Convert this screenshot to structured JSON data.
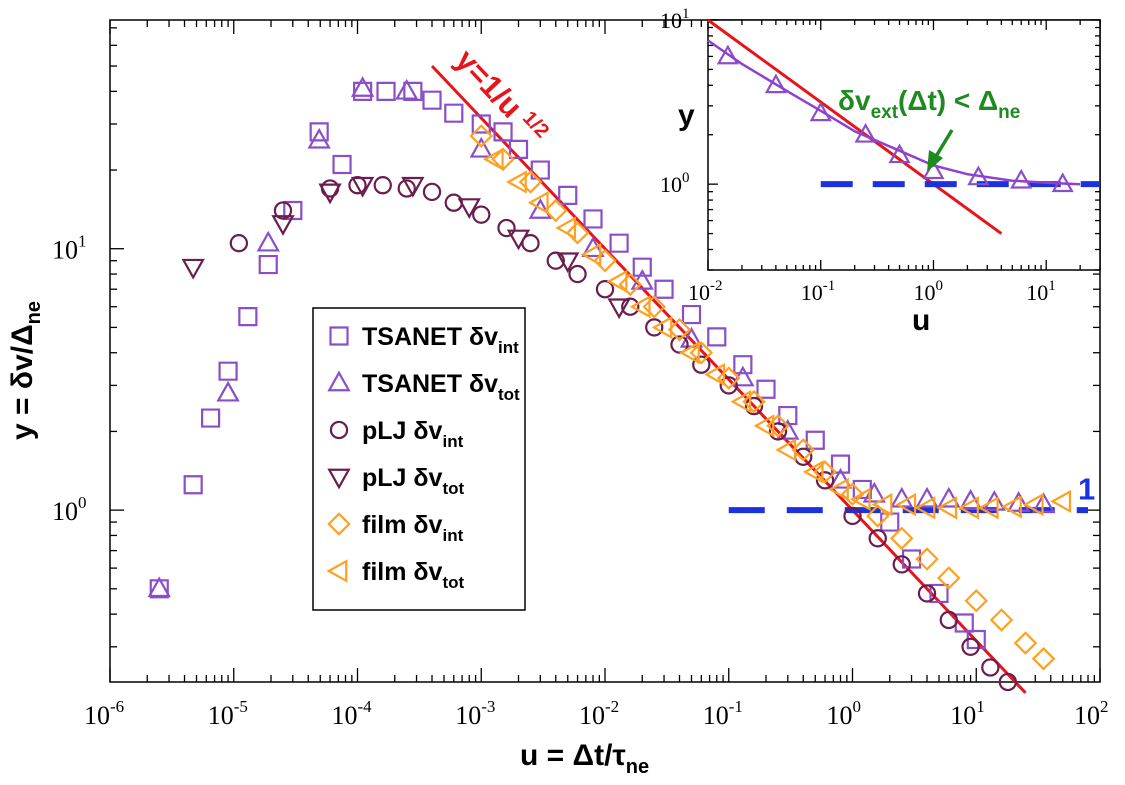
{
  "chart_data": [
    {
      "type": "scatter",
      "xlabel": "u = Δt/τ",
      "xlabel_sub": "ne",
      "ylabel": "y = δv/Δ",
      "ylabel_sub": "ne",
      "xscale": "log",
      "yscale": "log",
      "xlim": [
        1e-06,
        100
      ],
      "ylim": [
        0.22,
        75
      ],
      "x_tick_labels": [
        "10^-6",
        "10^-5",
        "10^-4",
        "10^-3",
        "10^-2",
        "10^-1",
        "10^0",
        "10^1",
        "10^2"
      ],
      "y_tick_labels": [
        "10^0",
        "10^1"
      ],
      "legend_position": "center-left",
      "series": [
        {
          "name": "TSANET δv_int",
          "label_main": "TSANET δv",
          "label_sub": "int",
          "marker": "square",
          "color": "#8a4fc8",
          "x": [
            2.5e-06,
            4.7e-06,
            6.5e-06,
            9e-06,
            1.3e-05,
            1.9e-05,
            3e-05,
            4.9e-05,
            7.5e-05,
            0.00011,
            0.00017,
            0.00028,
            0.0004,
            0.0006,
            0.001,
            0.0015,
            0.002,
            0.003,
            0.005,
            0.008,
            0.013,
            0.02,
            0.03,
            0.05,
            0.08,
            0.13,
            0.2,
            0.3,
            0.5,
            0.8,
            1.2,
            2,
            3,
            5,
            8,
            10
          ],
          "y": [
            0.5,
            1.25,
            2.25,
            3.4,
            5.5,
            8.7,
            14,
            28,
            21,
            40,
            40,
            40,
            37,
            33,
            30,
            28,
            24,
            20,
            16,
            13,
            10.5,
            8.5,
            7,
            5.6,
            4.6,
            3.6,
            2.9,
            2.3,
            1.85,
            1.5,
            1.2,
            0.9,
            0.65,
            0.48,
            0.37,
            0.32
          ]
        },
        {
          "name": "TSANET δv_tot",
          "label_main": "TSANET δv",
          "label_sub": "tot",
          "marker": "triangle-up",
          "color": "#8a4fc8",
          "x": [
            2.5e-06,
            9e-06,
            1.9e-05,
            4.9e-05,
            0.00011,
            0.00025,
            0.001,
            0.003,
            0.008,
            0.02,
            0.05,
            0.13,
            0.3,
            0.8,
            1.5,
            2.5,
            4,
            6,
            9,
            14,
            22,
            35
          ],
          "y": [
            0.5,
            2.8,
            10.5,
            26,
            41,
            40,
            24,
            14,
            10,
            7.5,
            4.5,
            3.2,
            2.0,
            1.3,
            1.15,
            1.1,
            1.1,
            1.1,
            1.08,
            1.07,
            1.06,
            1.05
          ]
        },
        {
          "name": "pLJ δv_int",
          "label_main": "pLJ δv",
          "label_sub": "int",
          "marker": "circle",
          "color": "#6b1e4d",
          "x": [
            1.1e-05,
            2.5e-05,
            6e-05,
            0.0001,
            0.00016,
            0.00025,
            0.0004,
            0.0006,
            0.001,
            0.0016,
            0.0025,
            0.004,
            0.006,
            0.01,
            0.016,
            0.025,
            0.04,
            0.06,
            0.1,
            0.16,
            0.25,
            0.4,
            0.6,
            1,
            1.6,
            2.5,
            4,
            6,
            9,
            13,
            18
          ],
          "y": [
            10.5,
            14,
            17,
            17.5,
            17.5,
            17,
            16.5,
            15,
            13.5,
            12,
            10.5,
            9,
            8,
            7,
            6,
            5,
            4.3,
            3.6,
            3.0,
            2.5,
            2.0,
            1.6,
            1.3,
            0.95,
            0.78,
            0.62,
            0.48,
            0.38,
            0.3,
            0.25,
            0.22
          ]
        },
        {
          "name": "pLJ δv_tot",
          "label_main": "pLJ δv",
          "label_sub": "tot",
          "marker": "triangle-down",
          "color": "#6b1e4d",
          "x": [
            4.7e-06,
            2.5e-05,
            6e-05,
            0.00011,
            0.00028,
            0.0008,
            0.002,
            0.005,
            0.013
          ],
          "y": [
            8.5,
            12.5,
            16.5,
            17.5,
            17.5,
            14.5,
            11,
            9,
            6
          ]
        },
        {
          "name": "film δv_int",
          "label_main": "film δv",
          "label_sub": "int",
          "marker": "diamond",
          "color": "#ffa020",
          "x": [
            0.001,
            0.0015,
            0.0025,
            0.004,
            0.006,
            0.01,
            0.016,
            0.025,
            0.04,
            0.06,
            0.1,
            0.16,
            0.25,
            0.4,
            0.6,
            1,
            1.6,
            2.5,
            4,
            6,
            10,
            16,
            25,
            35
          ],
          "y": [
            27,
            22,
            18,
            14,
            11.5,
            9,
            7.3,
            6,
            4.9,
            4,
            3.2,
            2.6,
            2.1,
            1.7,
            1.4,
            1.15,
            0.95,
            0.78,
            0.65,
            0.55,
            0.45,
            0.38,
            0.31,
            0.27
          ]
        },
        {
          "name": "film δv_tot",
          "label_main": "film δv",
          "label_sub": "tot",
          "marker": "triangle-left",
          "color": "#ffa020",
          "x": [
            0.0013,
            0.002,
            0.003,
            0.005,
            0.008,
            0.013,
            0.02,
            0.03,
            0.05,
            0.08,
            0.13,
            0.2,
            0.3,
            0.5,
            0.8,
            1.2,
            1.8,
            2.8,
            4,
            6,
            9,
            13,
            20,
            30,
            50
          ],
          "y": [
            22,
            18,
            15,
            12,
            9.5,
            7.5,
            6,
            5,
            4,
            3.3,
            2.6,
            2.1,
            1.7,
            1.4,
            1.2,
            1.1,
            1.05,
            1.05,
            1.02,
            1.02,
            1.02,
            1.02,
            1.03,
            1.05,
            1.08
          ]
        }
      ],
      "reference_lines": [
        {
          "label": "y=1/u",
          "label_exp": "1/2",
          "color": "#e8141a",
          "x": [
            0.0004,
            25
          ],
          "y": [
            50,
            0.2
          ]
        },
        {
          "label": "1",
          "color": "#1a32e0",
          "style": "dashed",
          "x": [
            0.1,
            80
          ],
          "y": [
            1,
            1
          ]
        }
      ]
    },
    {
      "type": "line",
      "role": "inset",
      "xlabel": "u",
      "ylabel": "y",
      "xscale": "log",
      "yscale": "log",
      "xlim": [
        0.01,
        30
      ],
      "ylim": [
        0.3,
        10
      ],
      "x_tick_labels": [
        "10^-2",
        "10^-1",
        "10^0",
        "10^1"
      ],
      "y_tick_labels": [
        "10^0",
        "10^1"
      ],
      "annotation": {
        "main": "δv",
        "sub": "ext",
        "rest": "(Δt) < Δ",
        "sub2": "ne",
        "color": "#1f8a1f"
      },
      "series": [
        {
          "name": "triangles",
          "marker": "triangle-up",
          "color": "#8a4fc8",
          "x": [
            0.015,
            0.04,
            0.1,
            0.25,
            0.5,
            1,
            2.5,
            6,
            14
          ],
          "y": [
            6,
            4,
            2.7,
            2.0,
            1.5,
            1.2,
            1.1,
            1.05,
            1.0
          ]
        },
        {
          "name": "fit",
          "marker": "none",
          "color": "#9040d0",
          "x": [
            0.01,
            0.02,
            0.05,
            0.1,
            0.2,
            0.5,
            1,
            2,
            5,
            10,
            20
          ],
          "y": [
            7.5,
            5.4,
            3.7,
            2.8,
            2.1,
            1.6,
            1.3,
            1.15,
            1.05,
            1.02,
            1.0
          ]
        }
      ],
      "reference_lines": [
        {
          "color": "#e8141a",
          "x": [
            0.01,
            4
          ],
          "y": [
            10,
            0.5
          ]
        },
        {
          "color": "#1a32e0",
          "style": "dashed",
          "x": [
            0.1,
            30
          ],
          "y": [
            1,
            1
          ]
        }
      ]
    }
  ]
}
